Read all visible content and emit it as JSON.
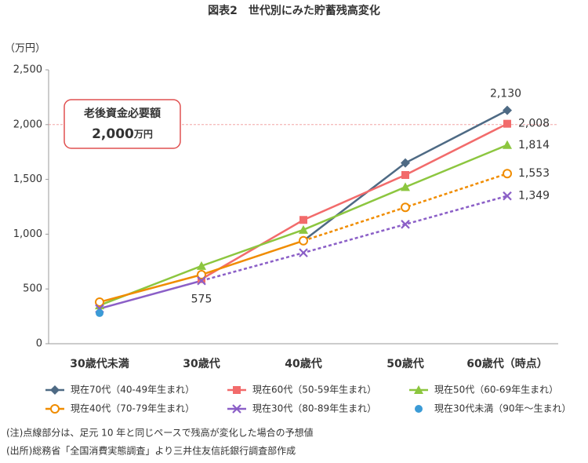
{
  "chart_data": {
    "type": "line",
    "title": "図表2　世代別にみた貯蓄残高変化",
    "y_label": "（万円）",
    "categories": [
      "30歳代未満",
      "30歳代",
      "40歳代",
      "50歳代",
      "60歳代（時点）"
    ],
    "ylim": [
      0,
      2500
    ],
    "yticks": [
      0,
      500,
      {
        "value": 1000,
        "label": "1,000"
      },
      {
        "value": 1500,
        "label": "1,500"
      },
      {
        "value": 2000,
        "label": "2,000"
      },
      {
        "value": 2500,
        "label": "2,500"
      }
    ],
    "reference": {
      "value": 2000,
      "title": "老後資金必要額",
      "value_label": "2,000",
      "unit": "万円",
      "color": "#f4a6a6"
    },
    "series": [
      {
        "name": "現在70代（40-49年生まれ）",
        "color": "#4e6a84",
        "marker": "diamond",
        "values": [
          null,
          null,
          940,
          1650,
          2130
        ],
        "value_labels": [
          null,
          null,
          null,
          null,
          "2,130"
        ]
      },
      {
        "name": "現在60代（50-59年生まれ）",
        "color": "#f26b6b",
        "marker": "square",
        "values": [
          null,
          590,
          1130,
          1540,
          2008
        ],
        "value_labels": [
          null,
          null,
          null,
          null,
          "2,008"
        ]
      },
      {
        "name": "現在50代（60-69年生まれ）",
        "color": "#8cc63f",
        "marker": "triangle",
        "values": [
          350,
          710,
          1040,
          1430,
          1814
        ],
        "value_labels": [
          null,
          null,
          null,
          null,
          "1,814"
        ]
      },
      {
        "name": "現在40代（70-79年生まれ）",
        "color": "#f08c00",
        "marker": "open-circle",
        "values": [
          380,
          630,
          940,
          1245,
          1553
        ],
        "value_labels": [
          null,
          null,
          null,
          null,
          "1,553"
        ],
        "dashed_from": 2
      },
      {
        "name": "現在30代（80-89年生まれ）",
        "color": "#8b5fc7",
        "marker": "x",
        "values": [
          320,
          575,
          830,
          1090,
          1349
        ],
        "value_labels": [
          null,
          "575",
          null,
          null,
          "1,349"
        ],
        "dashed_from": 1
      },
      {
        "name": "現在30代未満（90年〜生まれ）",
        "color": "#3b9bd6",
        "marker": "dot",
        "values": [
          280,
          null,
          null,
          null,
          null
        ]
      }
    ],
    "notes": [
      "(注)点線部分は、足元 10 年と同じペースで残高が変化した場合の予想値",
      "(出所)総務省「全国消費実態調査」より三井住友信託銀行調査部作成"
    ]
  }
}
